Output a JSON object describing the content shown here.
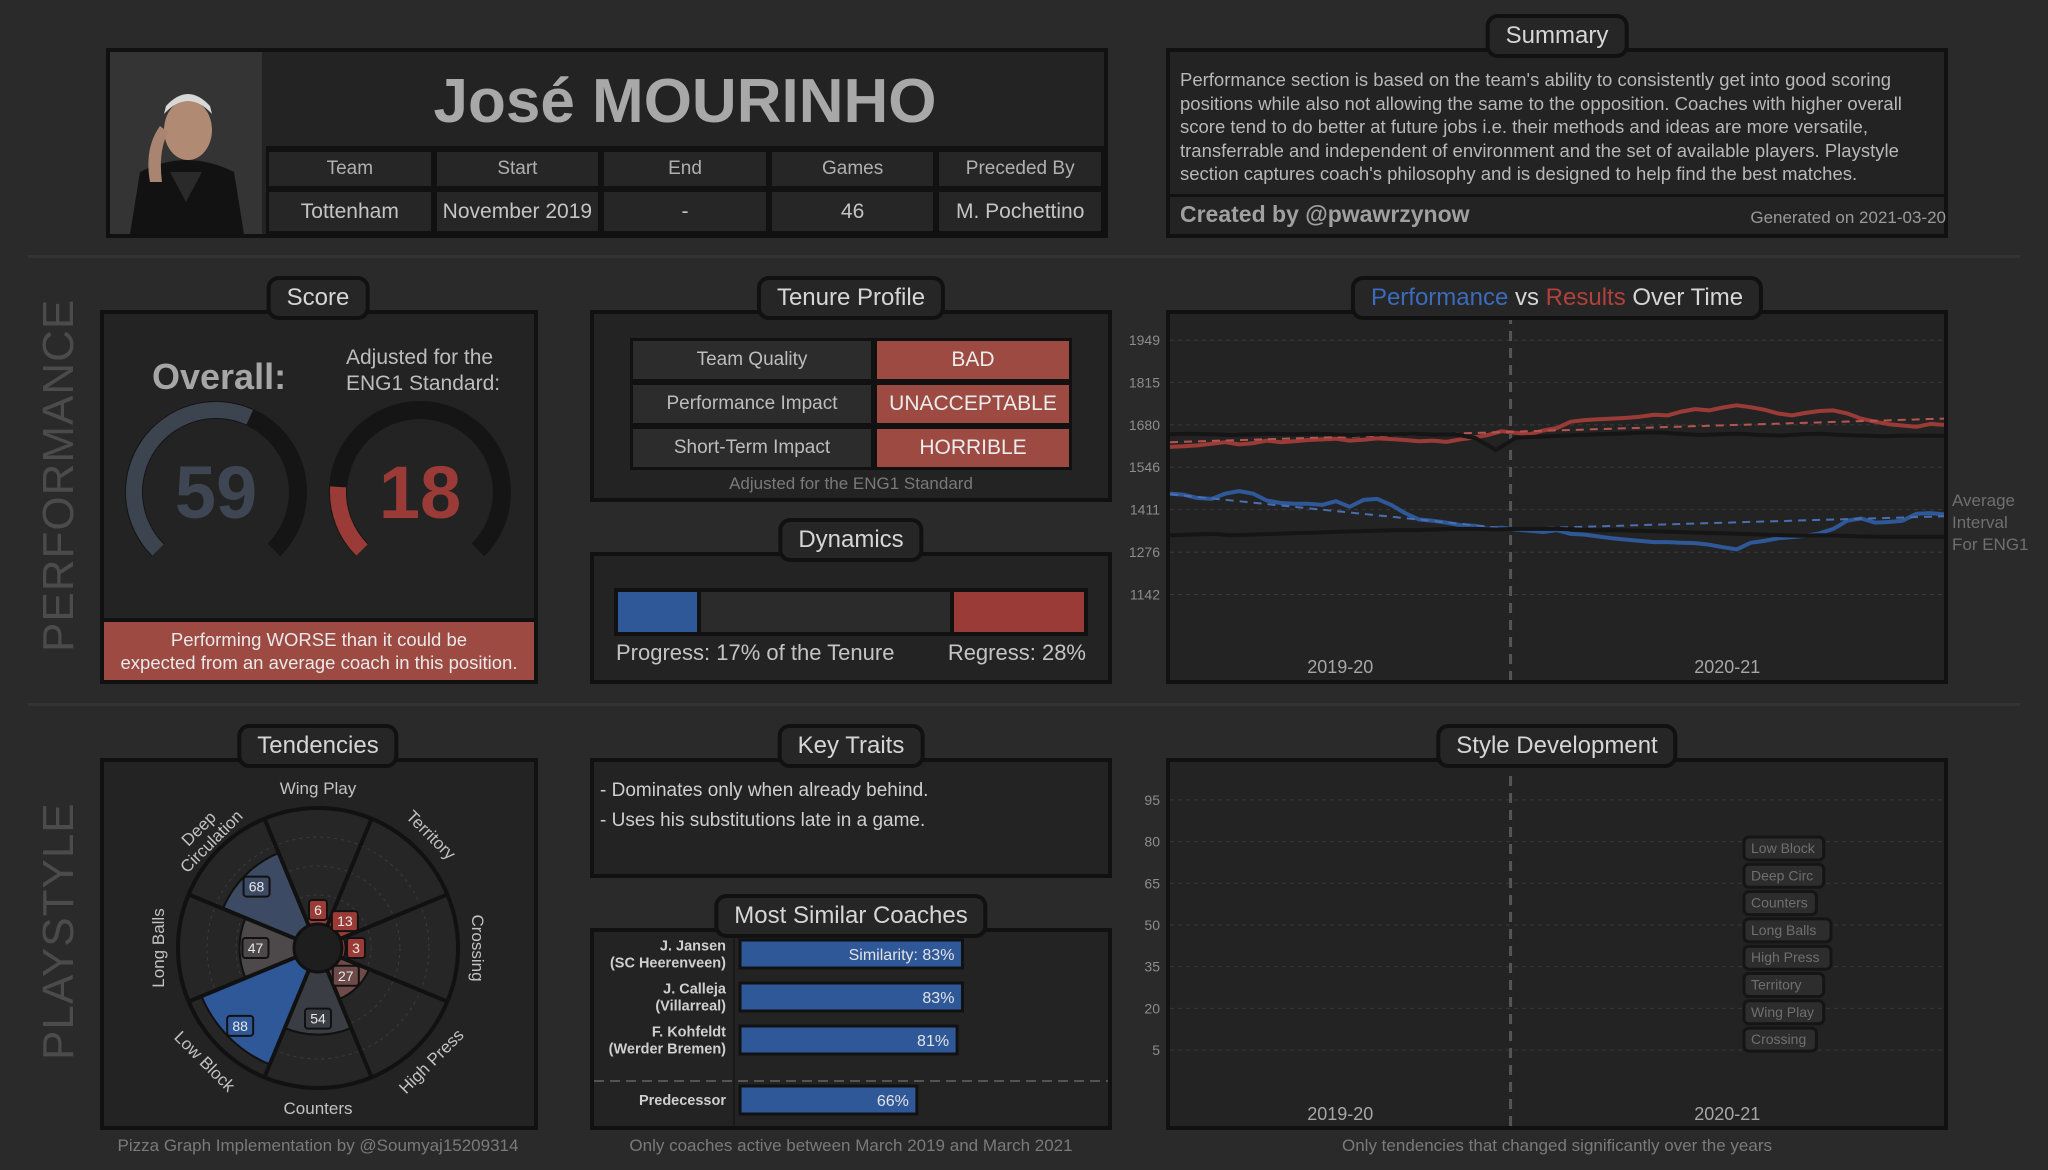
{
  "header": {
    "coach_name": "José MOURINHO",
    "columns": [
      "Team",
      "Start",
      "End",
      "Games",
      "Preceded By"
    ],
    "values": [
      "Tottenham",
      "November 2019",
      "-",
      "46",
      "M. Pochettino"
    ]
  },
  "summary": {
    "title": "Summary",
    "text": "Performance section is based on the team's ability to consistently get into good scoring positions while also not allowing the same to the opposition. Coaches with higher overall score tend to do better at future jobs i.e. their methods and ideas are more versatile, transferrable and independent of environment and the set of available players. Playstyle section captures coach's philosophy and is designed to help find the best matches.",
    "created_by": "Created by @pwawrzynow",
    "generated": "Generated on 2021-03-20"
  },
  "sections": {
    "performance": "PERFORMANCE",
    "playstyle": "PLAYSTYLE"
  },
  "score": {
    "title": "Score",
    "overall_label": "Overall:",
    "overall_value": 59,
    "adjusted_label_1": "Adjusted for the",
    "adjusted_label_2": "ENG1 Standard:",
    "adjusted_value": 18,
    "verdict_1": "Performing WORSE than it could be",
    "verdict_2": "expected from an average coach in this position."
  },
  "tenure": {
    "title": "Tenure Profile",
    "rows": [
      {
        "label": "Team Quality",
        "value": "BAD"
      },
      {
        "label": "Performance Impact",
        "value": "UNACCEPTABLE"
      },
      {
        "label": "Short-Term Impact",
        "value": "HORRIBLE"
      }
    ],
    "note": "Adjusted for the ENG1 Standard"
  },
  "dynamics": {
    "title": "Dynamics",
    "progress_label": "Progress: 17% of the Tenure",
    "regress_label": "Regress: 28%",
    "progress_fraction": 0.17,
    "regress_fraction": 0.28
  },
  "perf_title": {
    "part1": "Performance",
    "part2": " vs ",
    "part3": "Results",
    "part4": " Over Time"
  },
  "colors": {
    "blue": "#2f5899",
    "red": "#9b3b37",
    "gauge_grey": "#3c4450",
    "dark": "#151515"
  },
  "key_traits": {
    "title": "Key Traits",
    "items": [
      "- Dominates only when already behind.",
      "- Uses his substitutions late in a game."
    ]
  },
  "similar": {
    "title": "Most Similar Coaches",
    "note": "Only coaches active between March 2019 and March 2021"
  },
  "tendencies": {
    "title": "Tendencies",
    "note": "Pizza Graph Implementation by @Soumyaj15209314"
  },
  "style_dev": {
    "title": "Style Development",
    "note": "Only tendencies that changed significantly over the years"
  },
  "chart_data": [
    {
      "type": "line",
      "title": "Performance vs Results Over Time",
      "y_ticks": [
        1142,
        1276,
        1411,
        1546,
        1680,
        1815,
        1949
      ],
      "ylim": [
        1080,
        2000
      ],
      "x_ticks": [
        "2019-20",
        "2020-21"
      ],
      "season_split_fraction": 0.44,
      "side_label": [
        "Average",
        "Interval",
        "For ENG1"
      ],
      "series": [
        {
          "name": "Results",
          "color": "#9b3b37",
          "values": [
            1610,
            1612,
            1615,
            1620,
            1625,
            1618,
            1622,
            1630,
            1625,
            1628,
            1632,
            1634,
            1636,
            1630,
            1633,
            1637,
            1635,
            1632,
            1628,
            1630,
            1626,
            1634,
            1640,
            1648,
            1660,
            1655,
            1650,
            1662,
            1670,
            1690,
            1695,
            1698,
            1700,
            1702,
            1706,
            1712,
            1710,
            1722,
            1730,
            1726,
            1735,
            1742,
            1736,
            1728,
            1716,
            1710,
            1718,
            1724,
            1726,
            1716,
            1700,
            1690,
            1682,
            1678,
            1674,
            1683,
            1680
          ]
        },
        {
          "name": "Performance",
          "color": "#2f5899",
          "values": [
            1462,
            1458,
            1448,
            1445,
            1462,
            1470,
            1462,
            1440,
            1432,
            1430,
            1430,
            1426,
            1438,
            1420,
            1442,
            1445,
            1426,
            1400,
            1380,
            1376,
            1370,
            1362,
            1360,
            1350,
            1354,
            1348,
            1344,
            1340,
            1346,
            1334,
            1332,
            1326,
            1320,
            1316,
            1312,
            1308,
            1308,
            1306,
            1305,
            1300,
            1292,
            1285,
            1306,
            1312,
            1320,
            1324,
            1328,
            1336,
            1350,
            1376,
            1383,
            1370,
            1372,
            1376,
            1398,
            1400,
            1396
          ]
        },
        {
          "name": "Results trend",
          "style": "dashed",
          "values": [
            1625,
            1700
          ]
        },
        {
          "name": "Performance trend",
          "style": "dashed",
          "values": [
            1460,
            1350,
            1390
          ]
        },
        {
          "name": "ENG1 upper",
          "color": "#151515",
          "values": [
            1650,
            1652,
            1650,
            1648,
            1650,
            1652,
            1650,
            1652,
            1650,
            1648,
            1651,
            1650,
            1652,
            1649,
            1650,
            1638,
            1600,
            1640,
            1642,
            1645,
            1648,
            1650,
            1652,
            1655,
            1656,
            1652,
            1648,
            1650,
            1652,
            1648,
            1646,
            1650,
            1652,
            1648,
            1646,
            1644,
            1646,
            1646,
            1645
          ]
        },
        {
          "name": "ENG1 lower",
          "color": "#151515",
          "values": [
            1330,
            1332,
            1334,
            1330,
            1332,
            1334,
            1336,
            1338,
            1340,
            1342,
            1344,
            1346,
            1346,
            1348,
            1350,
            1350,
            1348,
            1350,
            1350,
            1350,
            1348,
            1346,
            1346,
            1344,
            1342,
            1340,
            1338,
            1336,
            1334,
            1332,
            1330,
            1328,
            1330,
            1328,
            1326,
            1325,
            1325,
            1325,
            1325
          ]
        }
      ]
    },
    {
      "type": "pie",
      "title": "Tendencies",
      "categories": [
        "Wing Play",
        "Territory",
        "Crossing",
        "High Press",
        "Counters",
        "Low Block",
        "Long Balls",
        "Deep Circulation"
      ],
      "category_lines": [
        [
          "Wing Play"
        ],
        [
          "Territory"
        ],
        [
          "Crossing"
        ],
        [
          "High Press"
        ],
        [
          "Counters"
        ],
        [
          "Low Block"
        ],
        [
          "Long Balls"
        ],
        [
          "Deep",
          "Circulation"
        ]
      ],
      "values": [
        6,
        13,
        3,
        27,
        54,
        88,
        47,
        68
      ],
      "slice_colors": [
        "#9b3b37",
        "#9b3b37",
        "#9b3b37",
        "#6e4b48",
        "#3a3d44",
        "#2f5899",
        "#4d4849",
        "#3c4a63"
      ],
      "rlim": [
        0,
        100
      ]
    },
    {
      "type": "bar",
      "title": "Most Similar Coaches",
      "categories": [
        [
          "J. Jansen",
          "(SC Heerenveen)"
        ],
        [
          "J. Calleja",
          "(Villarreal)"
        ],
        [
          "F. Kohfeldt",
          "(Werder Bremen)"
        ],
        [
          "Predecessor"
        ]
      ],
      "values": [
        83,
        83,
        81,
        66
      ],
      "labels": [
        "Similarity: 83%",
        "83%",
        "81%",
        "66%"
      ],
      "xlim": [
        0,
        100
      ]
    },
    {
      "type": "line",
      "title": "Style Development",
      "y_ticks": [
        5,
        20,
        35,
        50,
        65,
        80,
        95
      ],
      "ylim": [
        0,
        100
      ],
      "x_ticks": [
        "2019-20",
        "2020-21"
      ],
      "season_split_fraction": 0.44,
      "series": [],
      "legend": [
        "Low Block",
        "Deep Circ",
        "Counters",
        "Long Balls",
        "High Press",
        "Territory",
        "Wing Play",
        "Crossing"
      ]
    }
  ]
}
